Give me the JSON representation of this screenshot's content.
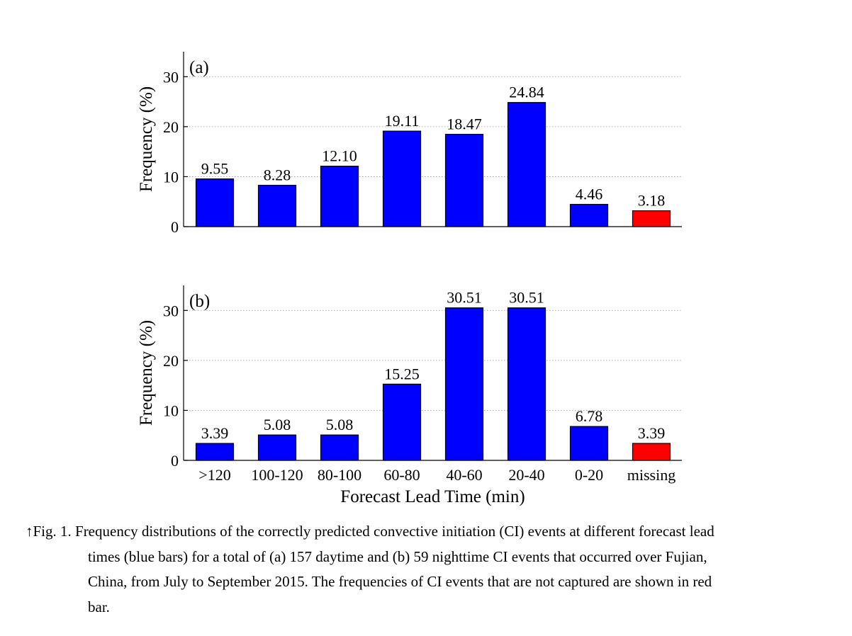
{
  "chart_data": [
    {
      "type": "bar",
      "panel_label": "(a)",
      "categories": [
        ">120",
        "100-120",
        "80-100",
        "60-80",
        "40-60",
        "20-40",
        "0-20",
        "missing"
      ],
      "values": [
        9.55,
        8.28,
        12.1,
        19.11,
        18.47,
        24.84,
        4.46,
        3.18
      ],
      "value_labels": [
        "9.55",
        "8.28",
        "12.10",
        "19.11",
        "18.47",
        "24.84",
        "4.46",
        "3.18"
      ],
      "bar_colors": [
        "#0000ff",
        "#0000ff",
        "#0000ff",
        "#0000ff",
        "#0000ff",
        "#0000ff",
        "#0000ff",
        "#ff0000"
      ],
      "xlabel": "Forecast Lead Time (min)",
      "ylabel": "Frequency (%)",
      "ylim": [
        0,
        35
      ],
      "yticks": [
        0,
        10,
        20,
        30
      ],
      "grid": "horizontal dotted",
      "legend": "none"
    },
    {
      "type": "bar",
      "panel_label": "(b)",
      "categories": [
        ">120",
        "100-120",
        "80-100",
        "60-80",
        "40-60",
        "20-40",
        "0-20",
        "missing"
      ],
      "values": [
        3.39,
        5.08,
        5.08,
        15.25,
        30.51,
        30.51,
        6.78,
        3.39
      ],
      "value_labels": [
        "3.39",
        "5.08",
        "5.08",
        "15.25",
        "30.51",
        "30.51",
        "6.78",
        "3.39"
      ],
      "bar_colors": [
        "#0000ff",
        "#0000ff",
        "#0000ff",
        "#0000ff",
        "#0000ff",
        "#0000ff",
        "#0000ff",
        "#ff0000"
      ],
      "xlabel": "Forecast Lead Time (min)",
      "ylabel": "Frequency (%)",
      "ylim": [
        0,
        35
      ],
      "yticks": [
        0,
        10,
        20,
        30
      ],
      "grid": "horizontal dotted",
      "legend": "none"
    }
  ],
  "caption": {
    "lines": [
      "↑Fig. 1. Frequency distributions of the correctly predicted convective initiation (CI) events at different forecast lead",
      "times (blue bars) for a total of (a) 157 daytime and (b) 59 nighttime CI events that occurred over Fujian,",
      "China, from July to September 2015. The frequencies of CI events that are not captured are shown in red",
      "bar."
    ]
  }
}
